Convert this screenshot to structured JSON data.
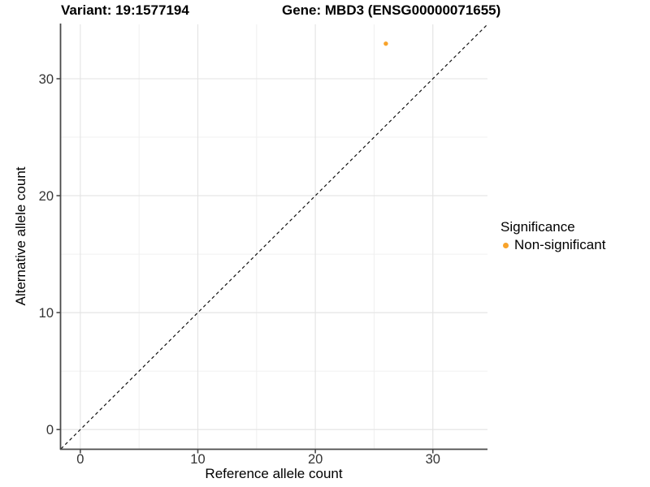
{
  "figure": {
    "title_left": "Variant: 19:1577194",
    "title_right": "Gene: MBD3 (ENSG00000071655)"
  },
  "legend": {
    "title": "Significance",
    "items": [
      {
        "label": "Non-significant",
        "color": "#F8A32A"
      }
    ]
  },
  "chart_data": {
    "type": "scatter",
    "title": "Variant: 19:1577194 | Gene: MBD3 (ENSG00000071655)",
    "xlabel": "Reference allele count",
    "ylabel": "Alternative allele count",
    "xlim": [
      -1.65,
      34.65
    ],
    "ylim": [
      -1.65,
      34.65
    ],
    "x_major_ticks": [
      0,
      10,
      20,
      30
    ],
    "y_major_ticks": [
      0,
      10,
      20,
      30
    ],
    "x_minor_ticks": [
      5,
      15,
      25
    ],
    "y_minor_ticks": [
      5,
      15,
      25
    ],
    "grid": true,
    "legend_position": "right",
    "reference_line": {
      "kind": "identity",
      "equation": "y = x",
      "style": "dashed",
      "color": "#111111"
    },
    "series": [
      {
        "name": "Non-significant",
        "color": "#F8A32A",
        "points": [
          {
            "x": 26,
            "y": 33
          }
        ]
      }
    ]
  }
}
